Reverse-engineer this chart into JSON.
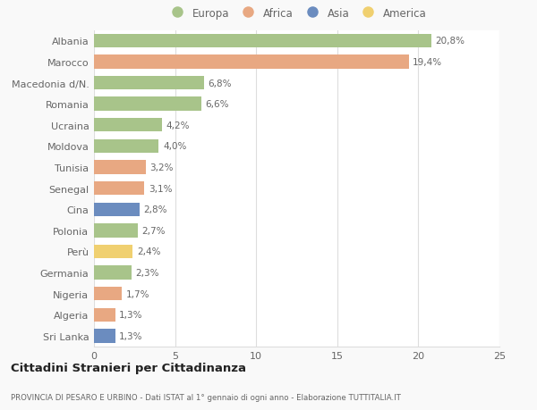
{
  "categories": [
    "Albania",
    "Marocco",
    "Macedonia d/N.",
    "Romania",
    "Ucraina",
    "Moldova",
    "Tunisia",
    "Senegal",
    "Cina",
    "Polonia",
    "Perù",
    "Germania",
    "Nigeria",
    "Algeria",
    "Sri Lanka"
  ],
  "values": [
    20.8,
    19.4,
    6.8,
    6.6,
    4.2,
    4.0,
    3.2,
    3.1,
    2.8,
    2.7,
    2.4,
    2.3,
    1.7,
    1.3,
    1.3
  ],
  "labels": [
    "20,8%",
    "19,4%",
    "6,8%",
    "6,6%",
    "4,2%",
    "4,0%",
    "3,2%",
    "3,1%",
    "2,8%",
    "2,7%",
    "2,4%",
    "2,3%",
    "1,7%",
    "1,3%",
    "1,3%"
  ],
  "continents": [
    "Europa",
    "Africa",
    "Europa",
    "Europa",
    "Europa",
    "Europa",
    "Africa",
    "Africa",
    "Asia",
    "Europa",
    "America",
    "Europa",
    "Africa",
    "Africa",
    "Asia"
  ],
  "colors": {
    "Europa": "#a8c48a",
    "Africa": "#e8a882",
    "Asia": "#6b8cbf",
    "America": "#f0d070"
  },
  "title": "Cittadini Stranieri per Cittadinanza",
  "subtitle": "PROVINCIA DI PESARO E URBINO - Dati ISTAT al 1° gennaio di ogni anno - Elaborazione TUTTITALIA.IT",
  "xlim": [
    0,
    25
  ],
  "xticks": [
    0,
    5,
    10,
    15,
    20,
    25
  ],
  "background_color": "#f9f9f9",
  "plot_bg_color": "#ffffff",
  "grid_color": "#dddddd",
  "text_color": "#666666",
  "legend_entries": [
    "Europa",
    "Africa",
    "Asia",
    "America"
  ]
}
